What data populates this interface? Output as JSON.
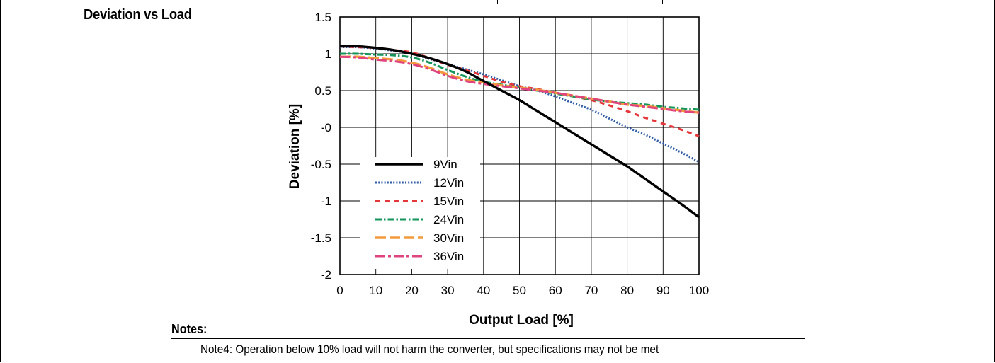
{
  "header": {
    "section_title": "Deviation vs Load"
  },
  "notes": {
    "label": "Notes:",
    "items": [
      "Note4: Operation below 10% load will not harm the converter, but specifications may not be met"
    ]
  },
  "chart_data": {
    "type": "line",
    "title": "",
    "xlabel": "Output Load [%]",
    "ylabel": "Deviation [%]",
    "xlim": [
      0,
      100
    ],
    "ylim": [
      -2,
      1.5
    ],
    "xticks": [
      0,
      10,
      20,
      30,
      40,
      50,
      60,
      70,
      80,
      90,
      100
    ],
    "yticks": [
      1.5,
      1,
      0.5,
      0,
      -0.5,
      -1,
      -1.5,
      -2
    ],
    "ytick_labels": [
      "1.5",
      "1",
      "0.5",
      "-0",
      "-0.5",
      "-1",
      "-1.5",
      "-2"
    ],
    "xtick_labels": [
      "0",
      "10",
      "20",
      "30",
      "40",
      "50",
      "60",
      "70",
      "80",
      "90",
      "100"
    ],
    "grid": true,
    "legend_position": "lower-left inside plot",
    "x": [
      0,
      5,
      10,
      15,
      20,
      25,
      30,
      35,
      40,
      45,
      50,
      55,
      60,
      65,
      70,
      75,
      80,
      85,
      90,
      95,
      100
    ],
    "series": [
      {
        "name": "9Vin",
        "color": "#000000",
        "style": "solid",
        "values": [
          1.1,
          1.1,
          1.08,
          1.05,
          1.0,
          0.94,
          0.86,
          0.76,
          0.63,
          0.5,
          0.37,
          0.22,
          0.07,
          -0.08,
          -0.23,
          -0.38,
          -0.53,
          -0.7,
          -0.87,
          -1.04,
          -1.22
        ]
      },
      {
        "name": "12Vin",
        "color": "#2f5da8",
        "style": "dotted",
        "values": [
          1.09,
          1.09,
          1.07,
          1.04,
          1.0,
          0.93,
          0.86,
          0.79,
          0.72,
          0.64,
          0.56,
          0.5,
          0.42,
          0.33,
          0.24,
          0.12,
          0.0,
          -0.1,
          -0.22,
          -0.34,
          -0.47
        ]
      },
      {
        "name": "15Vin",
        "color": "#e5373a",
        "style": "dashed",
        "values": [
          1.1,
          1.09,
          1.08,
          1.05,
          1.02,
          0.94,
          0.85,
          0.78,
          0.7,
          0.62,
          0.56,
          0.52,
          0.47,
          0.42,
          0.37,
          0.3,
          0.22,
          0.13,
          0.05,
          -0.03,
          -0.12
        ]
      },
      {
        "name": "24Vin",
        "color": "#14955a",
        "style": "dash-dot",
        "values": [
          1.0,
          1.0,
          0.99,
          0.98,
          0.95,
          0.88,
          0.78,
          0.69,
          0.62,
          0.58,
          0.54,
          0.5,
          0.46,
          0.42,
          0.38,
          0.35,
          0.33,
          0.31,
          0.28,
          0.26,
          0.24
        ]
      },
      {
        "name": "30Vin",
        "color": "#f39a3c",
        "style": "long-dash",
        "values": [
          0.96,
          0.96,
          0.94,
          0.92,
          0.88,
          0.81,
          0.72,
          0.65,
          0.61,
          0.57,
          0.54,
          0.51,
          0.47,
          0.43,
          0.39,
          0.35,
          0.31,
          0.29,
          0.26,
          0.23,
          0.2
        ]
      },
      {
        "name": "36Vin",
        "color": "#e0447f",
        "style": "long-dash-dot",
        "values": [
          0.96,
          0.95,
          0.92,
          0.9,
          0.86,
          0.79,
          0.7,
          0.63,
          0.59,
          0.56,
          0.53,
          0.5,
          0.47,
          0.43,
          0.39,
          0.35,
          0.31,
          0.28,
          0.25,
          0.22,
          0.2
        ]
      }
    ]
  }
}
